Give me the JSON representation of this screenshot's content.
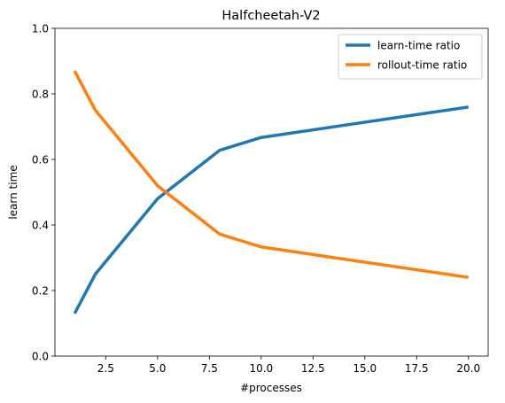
{
  "chart_data": {
    "type": "line",
    "title": "Halfcheetah-V2",
    "xlabel": "#processes",
    "ylabel": "learn time",
    "xlim": [
      0.05,
      20.95
    ],
    "ylim": [
      0.0,
      1.0
    ],
    "xticks": [
      2.5,
      5.0,
      7.5,
      10.0,
      12.5,
      15.0,
      17.5,
      20.0
    ],
    "xtick_labels": [
      "2.5",
      "5.0",
      "7.5",
      "10.0",
      "12.5",
      "15.0",
      "17.5",
      "20.0"
    ],
    "yticks": [
      0.0,
      0.2,
      0.4,
      0.6,
      0.8,
      1.0
    ],
    "ytick_labels": [
      "0.0",
      "0.2",
      "0.4",
      "0.6",
      "0.8",
      "1.0"
    ],
    "grid": false,
    "legend_position": "top-right",
    "series": [
      {
        "name": "learn-time ratio",
        "color": "#1f77b4",
        "x": [
          1,
          2,
          5,
          8,
          10,
          20
        ],
        "values": [
          0.13,
          0.25,
          0.48,
          0.628,
          0.667,
          0.76
        ]
      },
      {
        "name": "rollout-time ratio",
        "color": "#ff7f0e",
        "x": [
          1,
          2,
          5,
          8,
          10,
          20
        ],
        "values": [
          0.87,
          0.75,
          0.52,
          0.372,
          0.333,
          0.24
        ]
      }
    ]
  }
}
